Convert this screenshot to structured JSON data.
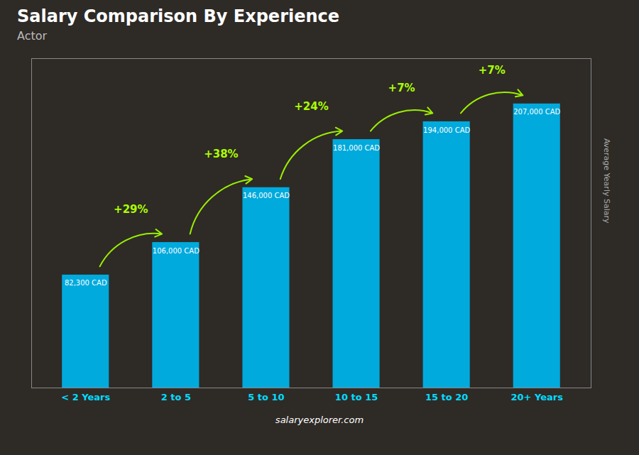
{
  "chart_data": {
    "type": "bar",
    "title": "Salary Comparison By Experience",
    "subtitle": "Actor",
    "ylabel": "Average Yearly Salary",
    "caption": "salaryexplorer.com",
    "categories": [
      "< 2 Years",
      "2 to 5",
      "5 to 10",
      "10 to 15",
      "15 to 20",
      "20+ Years"
    ],
    "values": [
      82300,
      106000,
      146000,
      181000,
      194000,
      207000
    ],
    "value_labels": [
      "82,300 CAD",
      "106,000 CAD",
      "146,000 CAD",
      "181,000 CAD",
      "194,000 CAD",
      "207,000 CAD"
    ],
    "data_labels": true,
    "annotations": [
      "+29%",
      "+38%",
      "+24%",
      "+7%",
      "+7%"
    ],
    "color": "#00aadd",
    "ylim": [
      0,
      240000
    ],
    "tick_labels": "x",
    "grid": false
  }
}
